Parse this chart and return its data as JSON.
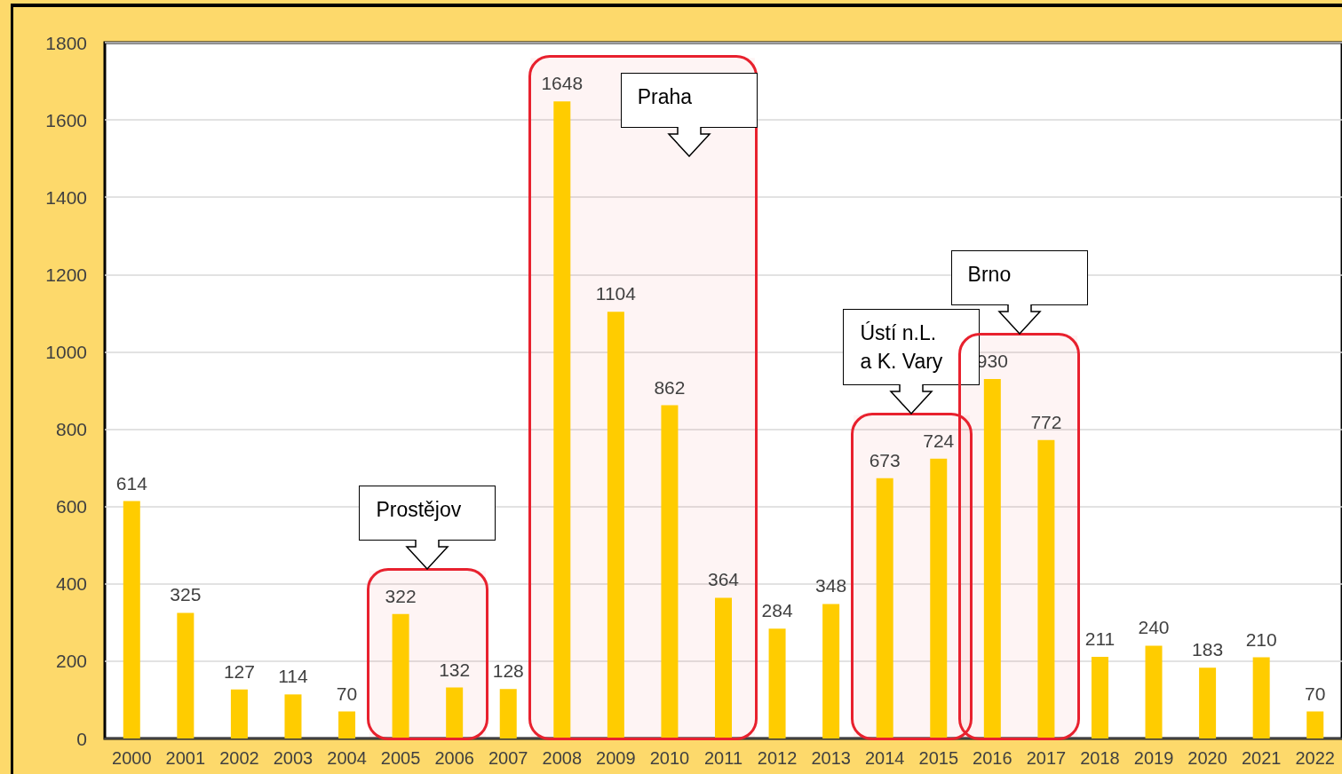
{
  "chart_data": {
    "type": "bar",
    "categories": [
      "2000",
      "2001",
      "2002",
      "2003",
      "2004",
      "2005",
      "2006",
      "2007",
      "2008",
      "2009",
      "2010",
      "2011",
      "2012",
      "2013",
      "2014",
      "2015",
      "2016",
      "2017",
      "2018",
      "2019",
      "2020",
      "2021",
      "2022"
    ],
    "values": [
      614,
      325,
      127,
      114,
      70,
      322,
      132,
      128,
      1648,
      1104,
      862,
      364,
      284,
      348,
      673,
      724,
      930,
      772,
      211,
      240,
      183,
      210,
      70
    ],
    "color": "#ffcc00",
    "ylim": [
      0,
      1800
    ],
    "yticks": [
      0,
      200,
      400,
      600,
      800,
      1000,
      1200,
      1400,
      1600,
      1800
    ],
    "grid": "y",
    "data_labels": true,
    "bands": [
      {
        "axis": "x",
        "from": "2005",
        "to": "2006",
        "label": "Prostějov",
        "color": "#e8212e"
      },
      {
        "axis": "x",
        "from": "2008",
        "to": "2011",
        "label": "Praha",
        "color": "#e8212e"
      },
      {
        "axis": "x",
        "from": "2014",
        "to": "2015",
        "label": "Ústí n.L.\na K. Vary",
        "color": "#e8212e"
      },
      {
        "axis": "x",
        "from": "2016",
        "to": "2017",
        "label": "Brno",
        "color": "#e8212e"
      }
    ]
  }
}
